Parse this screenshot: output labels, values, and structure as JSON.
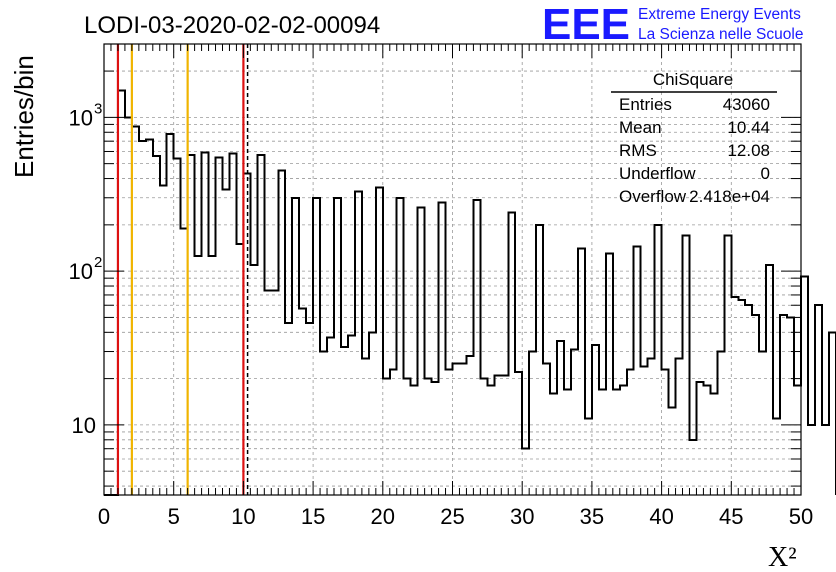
{
  "header": {
    "title": "LODI-03-2020-02-02-00094",
    "logo_text": "EEE",
    "brand_line1": "Extreme Energy Events",
    "brand_line2": "La Scienza nelle Scuole"
  },
  "stats": {
    "title": "ChiSquare",
    "rows": [
      {
        "label": "Entries",
        "value": "43060"
      },
      {
        "label": "Mean",
        "value": "10.44"
      },
      {
        "label": "RMS",
        "value": "12.08"
      },
      {
        "label": "Underflow",
        "value": "0"
      },
      {
        "label": "Overflow",
        "value": "2.418e+04"
      }
    ]
  },
  "colors": {
    "histogram": "#000000",
    "red_line": "#dd1111",
    "yellow_line": "#f0b400",
    "brand_blue": "#1a1aff",
    "grid": "#9a9a9a"
  },
  "chart_data": {
    "type": "histogram",
    "title": "LODI-03-2020-02-02-00094",
    "xlabel": "X²",
    "ylabel": "Entries/bin",
    "xlim": [
      0,
      50
    ],
    "ylim": [
      3.5,
      3000
    ],
    "log_y": true,
    "grid": true,
    "bin_width": 0.5,
    "x_ticks": [
      "0",
      "5",
      "10",
      "15",
      "20",
      "25",
      "30",
      "35",
      "40",
      "45",
      "50"
    ],
    "y_ticks": [
      {
        "value": 10,
        "label": "10"
      },
      {
        "value": 100,
        "label": "10",
        "exp": "2"
      },
      {
        "value": 1000,
        "label": "10",
        "exp": "3"
      }
    ],
    "values": [
      0,
      0,
      1500,
      1000,
      870,
      700,
      720,
      560,
      360,
      780,
      540,
      190,
      570,
      125,
      590,
      125,
      550,
      340,
      580,
      150,
      430,
      110,
      570,
      75,
      75,
      450,
      46,
      300,
      57,
      46,
      300,
      30,
      37,
      300,
      32,
      38,
      330,
      27,
      40,
      350,
      20,
      23,
      300,
      20,
      18,
      260,
      20,
      19,
      280,
      23,
      25,
      25,
      28,
      290,
      20,
      18,
      21,
      21,
      240,
      22,
      7,
      30,
      200,
      25,
      16,
      35,
      17,
      31,
      140,
      11,
      33,
      17,
      130,
      17,
      18,
      23,
      145,
      24,
      27,
      200,
      23,
      13,
      27,
      170,
      8,
      19,
      18,
      16,
      30,
      170,
      68,
      65,
      60,
      52,
      30,
      110,
      11,
      52,
      50,
      18,
      92,
      10,
      60,
      10,
      40
    ],
    "vlines": [
      {
        "x": 1,
        "color": "red",
        "style": "solid"
      },
      {
        "x": 2,
        "color": "yellow",
        "style": "solid"
      },
      {
        "x": 6,
        "color": "yellow",
        "style": "solid"
      },
      {
        "x": 10,
        "color": "red",
        "style": "solid"
      },
      {
        "x": 10.3,
        "color": "black",
        "style": "dashed"
      }
    ]
  }
}
